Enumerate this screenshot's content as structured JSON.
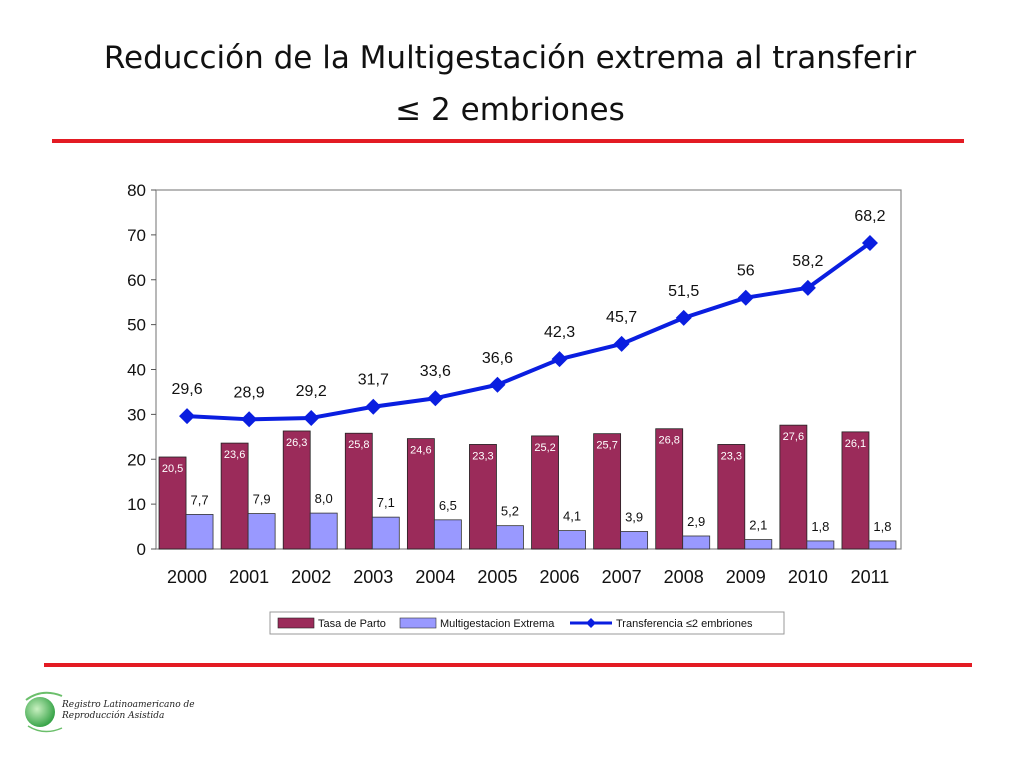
{
  "title": {
    "line1": "Reducción de la Multigestación extrema al transferir",
    "line2": "≤ 2 embriones"
  },
  "colors": {
    "accent": "#e31b23",
    "bar_parto": "#9b2b5a",
    "bar_multi": "#9999ff",
    "line_transfer": "#0a1ee0"
  },
  "chart_data": {
    "type": "bar",
    "title": "",
    "categories": [
      "2000",
      "2001",
      "2002",
      "2003",
      "2004",
      "2005",
      "2006",
      "2007",
      "2008",
      "2009",
      "2010",
      "2011"
    ],
    "series": [
      {
        "name": "Tasa de Parto",
        "kind": "bar",
        "values": [
          20.5,
          23.6,
          26.3,
          25.8,
          24.6,
          23.3,
          25.2,
          25.7,
          26.8,
          23.3,
          27.6,
          26.1
        ],
        "labels": [
          "20,5",
          "23,6",
          "26,3",
          "25,8",
          "24,6",
          "23,3",
          "25,2",
          "25,7",
          "26,8",
          "23,3",
          "27,6",
          "26,1"
        ]
      },
      {
        "name": "Multigestacion Extrema",
        "kind": "bar",
        "values": [
          7.7,
          7.9,
          8.0,
          7.1,
          6.5,
          5.2,
          4.1,
          3.9,
          2.9,
          2.1,
          1.8,
          1.8
        ],
        "labels": [
          "7,7",
          "7,9",
          "8,0",
          "7,1",
          "6,5",
          "5,2",
          "4,1",
          "3,9",
          "2,9",
          "2,1",
          "1,8",
          "1,8"
        ]
      },
      {
        "name": "Transferencia ≤2 embriones",
        "kind": "line",
        "values": [
          29.6,
          28.9,
          29.2,
          31.7,
          33.6,
          36.6,
          42.3,
          45.7,
          51.5,
          56,
          58.2,
          68.2
        ],
        "labels": [
          "29,6",
          "28,9",
          "29,2",
          "31,7",
          "33,6",
          "36,6",
          "42,3",
          "45,7",
          "51,5",
          "56",
          "58,2",
          "68,2"
        ]
      }
    ],
    "yticks": [
      "0",
      "10",
      "20",
      "30",
      "40",
      "50",
      "60",
      "70",
      "80"
    ],
    "ylim": [
      0,
      80
    ],
    "xlabel": "",
    "ylabel": "",
    "grid": false,
    "legend": "bottom"
  },
  "logo": {
    "line1": "Registro Latinoamericano de",
    "line2": "Reproducción Asistida"
  }
}
